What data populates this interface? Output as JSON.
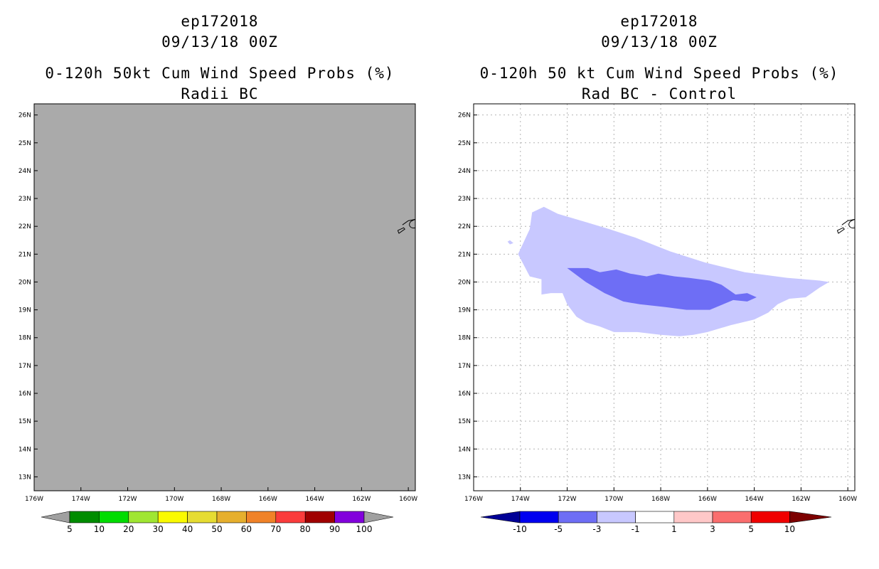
{
  "chart_data": [
    {
      "type": "heatmap",
      "title_lines": [
        "ep172018",
        "09/13/18 00Z",
        "0-120h 50kt Cum Wind Speed Probs (%)",
        "Radii BC"
      ],
      "x_ticks": [
        "176W",
        "174W",
        "172W",
        "170W",
        "168W",
        "166W",
        "164W",
        "162W",
        "160W"
      ],
      "y_ticks": [
        "13N",
        "14N",
        "15N",
        "16N",
        "17N",
        "18N",
        "19N",
        "20N",
        "21N",
        "22N",
        "23N",
        "24N",
        "25N",
        "26N"
      ],
      "xlim": [
        -176,
        -159.7
      ],
      "ylim": [
        12.5,
        26.4
      ],
      "grid": false,
      "field_note": "uniform gray fill",
      "colorbar": {
        "labels": [
          "5",
          "10",
          "20",
          "30",
          "40",
          "50",
          "60",
          "70",
          "80",
          "90",
          "100"
        ],
        "colors": [
          "#008c00",
          "#00dc00",
          "#a0e632",
          "#fafa00",
          "#e6dc32",
          "#e6af2d",
          "#f08228",
          "#fa3c3c",
          "#a00000",
          "#8200dc"
        ],
        "end_low": "#a0a0a0",
        "end_high": "#a0a0a0"
      }
    },
    {
      "type": "heatmap",
      "title_lines": [
        "ep172018",
        "09/13/18 00Z",
        "0-120h 50 kt Cum Wind Speed Probs (%)",
        "Rad BC - Control"
      ],
      "x_ticks": [
        "176W",
        "174W",
        "172W",
        "170W",
        "168W",
        "166W",
        "164W",
        "162W",
        "160W"
      ],
      "y_ticks": [
        "13N",
        "14N",
        "15N",
        "16N",
        "17N",
        "18N",
        "19N",
        "20N",
        "21N",
        "22N",
        "23N",
        "24N",
        "25N",
        "26N"
      ],
      "xlim": [
        -176,
        -159.7
      ],
      "ylim": [
        12.5,
        26.4
      ],
      "grid": true,
      "contours": [
        {
          "level": "-3 to -1",
          "color": "#c8c8ff",
          "polygon": [
            [
              -174.1,
              21.0
            ],
            [
              -173.6,
              21.9
            ],
            [
              -173.5,
              22.5
            ],
            [
              -173.0,
              22.7
            ],
            [
              -172.4,
              22.45
            ],
            [
              -171.2,
              22.15
            ],
            [
              -170.2,
              21.9
            ],
            [
              -169.1,
              21.6
            ],
            [
              -167.6,
              21.1
            ],
            [
              -166.1,
              20.7
            ],
            [
              -164.4,
              20.35
            ],
            [
              -162.6,
              20.15
            ],
            [
              -161.2,
              20.05
            ],
            [
              -160.8,
              20.0
            ],
            [
              -161.2,
              19.8
            ],
            [
              -161.8,
              19.45
            ],
            [
              -162.5,
              19.4
            ],
            [
              -163.0,
              19.2
            ],
            [
              -163.4,
              18.9
            ],
            [
              -164.0,
              18.65
            ],
            [
              -165.0,
              18.45
            ],
            [
              -166.0,
              18.2
            ],
            [
              -166.6,
              18.1
            ],
            [
              -167.2,
              18.05
            ],
            [
              -168.0,
              18.1
            ],
            [
              -169.0,
              18.2
            ],
            [
              -170.0,
              18.2
            ],
            [
              -170.6,
              18.4
            ],
            [
              -171.2,
              18.55
            ],
            [
              -171.6,
              18.75
            ],
            [
              -172.0,
              19.2
            ],
            [
              -172.2,
              19.6
            ],
            [
              -172.7,
              19.6
            ],
            [
              -173.1,
              19.55
            ],
            [
              -173.1,
              20.1
            ],
            [
              -173.6,
              20.2
            ]
          ]
        },
        {
          "level": "-3 to -1",
          "color": "#c8c8ff",
          "polygon": [
            [
              -174.45,
              21.5
            ],
            [
              -174.3,
              21.4
            ],
            [
              -174.45,
              21.35
            ],
            [
              -174.55,
              21.45
            ]
          ]
        },
        {
          "level": "-5 to -3",
          "color": "#6e6ef5",
          "polygon": [
            [
              -172.0,
              20.5
            ],
            [
              -171.1,
              20.5
            ],
            [
              -170.6,
              20.35
            ],
            [
              -169.9,
              20.45
            ],
            [
              -169.3,
              20.3
            ],
            [
              -168.6,
              20.2
            ],
            [
              -168.1,
              20.3
            ],
            [
              -167.4,
              20.2
            ],
            [
              -166.8,
              20.15
            ],
            [
              -165.9,
              20.05
            ],
            [
              -165.4,
              19.9
            ],
            [
              -164.8,
              19.55
            ],
            [
              -164.3,
              19.6
            ],
            [
              -163.9,
              19.45
            ],
            [
              -164.3,
              19.3
            ],
            [
              -164.9,
              19.35
            ],
            [
              -165.9,
              19.0
            ],
            [
              -166.9,
              19.0
            ],
            [
              -167.8,
              19.1
            ],
            [
              -168.9,
              19.2
            ],
            [
              -169.6,
              19.3
            ],
            [
              -170.4,
              19.6
            ],
            [
              -171.2,
              20.0
            ]
          ]
        }
      ],
      "colorbar": {
        "labels": [
          "-10",
          "-5",
          "-3",
          "-1",
          "1",
          "3",
          "5",
          "10"
        ],
        "colors": [
          "#0000f0",
          "#6e6ef5",
          "#c8c8ff",
          "#ffffff",
          "#ffc8c8",
          "#fa6e6e",
          "#f00000"
        ],
        "end_low": "#000096",
        "end_high": "#7d0000"
      }
    }
  ],
  "coastlines": [
    [
      [
        -160.25,
        22.05
      ],
      [
        -160.0,
        22.2
      ],
      [
        -159.7,
        22.25
      ]
    ],
    [
      [
        -160.45,
        21.85
      ],
      [
        -160.2,
        21.95
      ],
      [
        -160.15,
        21.9
      ],
      [
        -160.4,
        21.75
      ],
      [
        -160.45,
        21.85
      ]
    ]
  ]
}
